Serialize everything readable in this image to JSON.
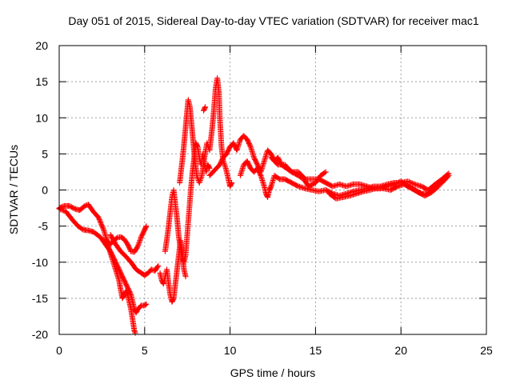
{
  "chart_data": {
    "type": "scatter",
    "title": "Day 051 of 2015, Sidereal Day-to-day VTEC variation (SDTVAR) for receiver mac1",
    "xlabel": "GPS time / hours",
    "ylabel": "SDTVAR / TECUs",
    "xlim": [
      0,
      25
    ],
    "ylim": [
      -20,
      20
    ],
    "x_ticks": [
      0,
      5,
      10,
      15,
      20,
      25
    ],
    "x_tick_labels": [
      "0",
      "5",
      "10",
      "15",
      "20",
      "25"
    ],
    "y_ticks": [
      -20,
      -15,
      -10,
      -5,
      0,
      5,
      10,
      15,
      20
    ],
    "y_tick_labels": [
      "-20",
      "-15",
      "-10",
      "-5",
      "0",
      "5",
      "10",
      "15",
      "20"
    ],
    "grid": true,
    "marker": "+",
    "color": "#ff0000",
    "series": [
      {
        "name": "mac1",
        "tracks": [
          [
            [
              0.0,
              -2.5
            ],
            [
              0.3,
              -2.2
            ],
            [
              0.6,
              -2.2
            ],
            [
              0.9,
              -2.6
            ],
            [
              1.2,
              -2.8
            ],
            [
              1.5,
              -2.2
            ],
            [
              1.7,
              -2.0
            ],
            [
              2.0,
              -3.0
            ],
            [
              2.3,
              -3.8
            ],
            [
              2.6,
              -5.5
            ],
            [
              2.8,
              -7.0
            ],
            [
              3.0,
              -7.5
            ],
            [
              3.2,
              -7.0
            ],
            [
              3.4,
              -6.6
            ],
            [
              3.6,
              -6.5
            ],
            [
              3.8,
              -6.8
            ],
            [
              4.0,
              -7.5
            ],
            [
              4.2,
              -8.5
            ],
            [
              4.4,
              -8.6
            ],
            [
              4.6,
              -7.8
            ],
            [
              4.8,
              -6.5
            ],
            [
              5.0,
              -5.5
            ],
            [
              5.1,
              -5.0
            ]
          ],
          [
            [
              0.0,
              -2.6
            ],
            [
              0.4,
              -3.0
            ],
            [
              0.8,
              -4.2
            ],
            [
              1.1,
              -5.0
            ],
            [
              1.4,
              -5.5
            ],
            [
              1.7,
              -5.6
            ],
            [
              2.0,
              -5.8
            ],
            [
              2.4,
              -6.5
            ],
            [
              2.7,
              -7.5
            ],
            [
              3.0,
              -8.5
            ],
            [
              3.2,
              -9.5
            ],
            [
              3.4,
              -10.5
            ],
            [
              3.6,
              -11.5
            ],
            [
              3.8,
              -12.5
            ],
            [
              4.0,
              -13.5
            ],
            [
              4.2,
              -14.5
            ],
            [
              4.3,
              -15.5
            ],
            [
              4.4,
              -16.5
            ],
            [
              4.5,
              -17.0
            ],
            [
              4.6,
              -16.5
            ],
            [
              4.8,
              -16.0
            ],
            [
              5.0,
              -16.0
            ],
            [
              5.1,
              -15.8
            ]
          ],
          [
            [
              2.7,
              -6.8
            ],
            [
              2.9,
              -8.0
            ],
            [
              3.1,
              -9.5
            ],
            [
              3.3,
              -11.0
            ],
            [
              3.5,
              -12.5
            ],
            [
              3.6,
              -13.8
            ],
            [
              3.7,
              -15.0
            ],
            [
              3.8,
              -14.5
            ],
            [
              3.9,
              -14.0
            ],
            [
              4.0,
              -14.5
            ],
            [
              4.1,
              -15.5
            ],
            [
              4.2,
              -16.5
            ],
            [
              4.3,
              -18.0
            ],
            [
              4.4,
              -19.5
            ],
            [
              4.45,
              -19.8
            ]
          ],
          [
            [
              3.0,
              -6.2
            ],
            [
              3.3,
              -7.5
            ],
            [
              3.6,
              -8.5
            ],
            [
              3.9,
              -9.2
            ],
            [
              4.2,
              -10.0
            ],
            [
              4.5,
              -11.0
            ],
            [
              4.8,
              -11.5
            ],
            [
              5.0,
              -11.8
            ],
            [
              5.2,
              -11.5
            ],
            [
              5.4,
              -11.0
            ],
            [
              5.6,
              -11.2
            ],
            [
              5.8,
              -10.5
            ]
          ],
          [
            [
              5.9,
              -11.5
            ],
            [
              6.0,
              -12.5
            ],
            [
              6.1,
              -13.0
            ],
            [
              6.2,
              -12.0
            ],
            [
              6.3,
              -11.0
            ],
            [
              6.4,
              -13.0
            ],
            [
              6.5,
              -14.5
            ],
            [
              6.6,
              -15.5
            ],
            [
              6.7,
              -15.0
            ],
            [
              6.8,
              -13.0
            ],
            [
              6.9,
              -11.0
            ],
            [
              7.0,
              -9.0
            ],
            [
              7.1,
              -7.0
            ],
            [
              7.2,
              -8.5
            ],
            [
              7.3,
              -11.0
            ],
            [
              7.4,
              -12.0
            ]
          ],
          [
            [
              6.2,
              -8.5
            ],
            [
              6.35,
              -6.0
            ],
            [
              6.5,
              -3.0
            ],
            [
              6.6,
              -1.0
            ],
            [
              6.7,
              0.0
            ],
            [
              6.8,
              -2.0
            ],
            [
              6.9,
              -4.0
            ],
            [
              7.0,
              -6.5
            ],
            [
              7.1,
              -8.0
            ],
            [
              7.2,
              -9.5
            ],
            [
              7.3,
              -10.0
            ],
            [
              7.4,
              -9.0
            ],
            [
              7.5,
              -6.0
            ],
            [
              7.6,
              -3.0
            ],
            [
              7.7,
              0.0
            ],
            [
              7.8,
              2.5
            ],
            [
              7.9,
              4.5
            ],
            [
              8.0,
              6.5
            ],
            [
              8.1,
              6.0
            ],
            [
              8.2,
              4.5
            ],
            [
              8.3,
              3.5
            ],
            [
              8.4,
              5.0
            ],
            [
              8.5,
              3.5
            ],
            [
              8.6,
              2.5
            ],
            [
              8.7,
              3.5
            ],
            [
              8.8,
              3.0
            ]
          ],
          [
            [
              7.05,
              1.0
            ],
            [
              7.15,
              3.0
            ],
            [
              7.25,
              5.0
            ],
            [
              7.35,
              7.5
            ],
            [
              7.45,
              10.0
            ],
            [
              7.55,
              12.5
            ],
            [
              7.65,
              11.5
            ],
            [
              7.75,
              9.0
            ],
            [
              7.85,
              6.5
            ],
            [
              7.95,
              4.0
            ],
            [
              8.05,
              2.0
            ],
            [
              8.2,
              1.0
            ],
            [
              8.35,
              2.0
            ],
            [
              8.5,
              4.5
            ],
            [
              8.65,
              6.5
            ],
            [
              8.8,
              5.5
            ],
            [
              8.95,
              8.5
            ],
            [
              9.05,
              11.0
            ],
            [
              9.15,
              14.0
            ],
            [
              9.25,
              15.5
            ],
            [
              9.35,
              13.5
            ],
            [
              9.4,
              10.0
            ],
            [
              9.5,
              6.0
            ],
            [
              9.6,
              4.0
            ],
            [
              9.75,
              3.0
            ],
            [
              9.9,
              1.5
            ],
            [
              10.0,
              0.5
            ],
            [
              10.1,
              1.0
            ]
          ],
          [
            [
              8.45,
              11.0
            ],
            [
              8.55,
              11.5
            ]
          ],
          [
            [
              8.8,
              2.0
            ],
            [
              9.0,
              2.5
            ],
            [
              9.2,
              3.0
            ],
            [
              9.4,
              3.5
            ],
            [
              9.6,
              4.5
            ],
            [
              9.8,
              5.0
            ],
            [
              10.0,
              6.0
            ],
            [
              10.2,
              6.5
            ],
            [
              10.4,
              5.5
            ],
            [
              10.6,
              7.0
            ],
            [
              10.8,
              7.5
            ],
            [
              11.0,
              7.0
            ],
            [
              11.2,
              6.0
            ],
            [
              11.4,
              4.5
            ],
            [
              11.6,
              3.5
            ],
            [
              11.8,
              2.5
            ],
            [
              12.0,
              4.0
            ],
            [
              12.2,
              5.5
            ],
            [
              12.4,
              5.0
            ],
            [
              12.6,
              4.0
            ],
            [
              12.8,
              4.5
            ],
            [
              13.0,
              3.5
            ],
            [
              13.3,
              3.0
            ],
            [
              13.6,
              2.5
            ],
            [
              14.0,
              2.0
            ],
            [
              14.3,
              1.5
            ],
            [
              14.6,
              0.5
            ],
            [
              15.0,
              1.0
            ],
            [
              15.3,
              2.0
            ],
            [
              15.6,
              2.5
            ]
          ],
          [
            [
              10.6,
              2.0
            ],
            [
              10.8,
              3.5
            ],
            [
              11.0,
              4.0
            ],
            [
              11.2,
              3.0
            ],
            [
              11.4,
              2.5
            ],
            [
              11.6,
              3.0
            ],
            [
              11.8,
              2.0
            ],
            [
              12.0,
              0.5
            ],
            [
              12.1,
              -0.5
            ],
            [
              12.2,
              -1.0
            ],
            [
              12.3,
              0.0
            ],
            [
              12.4,
              0.5
            ],
            [
              12.6,
              2.0
            ],
            [
              12.9,
              1.5
            ],
            [
              13.2,
              1.5
            ],
            [
              13.6,
              1.0
            ],
            [
              14.0,
              0.5
            ],
            [
              14.4,
              0.2
            ],
            [
              14.8,
              0.0
            ],
            [
              15.2,
              -0.2
            ],
            [
              15.6,
              0.0
            ],
            [
              16.0,
              -0.5
            ],
            [
              16.4,
              -0.8
            ],
            [
              16.8,
              -0.5
            ],
            [
              17.2,
              -0.2
            ],
            [
              17.6,
              0.0
            ],
            [
              18.0,
              0.2
            ],
            [
              18.4,
              0.5
            ],
            [
              18.8,
              0.5
            ],
            [
              19.2,
              0.8
            ],
            [
              19.6,
              1.0
            ],
            [
              20.0,
              1.0
            ],
            [
              20.4,
              1.2
            ],
            [
              20.8,
              0.8
            ],
            [
              21.2,
              0.5
            ],
            [
              21.6,
              0.0
            ],
            [
              22.0,
              0.8
            ],
            [
              22.4,
              1.5
            ],
            [
              22.8,
              2.3
            ]
          ],
          [
            [
              12.4,
              4.5
            ],
            [
              12.8,
              3.5
            ],
            [
              13.2,
              3.5
            ],
            [
              13.6,
              2.5
            ],
            [
              14.0,
              2.5
            ],
            [
              14.4,
              1.5
            ],
            [
              14.8,
              1.5
            ],
            [
              15.2,
              1.5
            ],
            [
              15.6,
              1.0
            ],
            [
              16.0,
              0.5
            ],
            [
              16.4,
              0.8
            ],
            [
              16.8,
              0.5
            ],
            [
              17.2,
              0.8
            ],
            [
              17.6,
              0.8
            ],
            [
              18.0,
              0.5
            ],
            [
              18.4,
              0.2
            ],
            [
              18.8,
              0.2
            ],
            [
              19.2,
              0.5
            ],
            [
              19.6,
              0.8
            ],
            [
              20.0,
              1.2
            ],
            [
              20.4,
              0.5
            ],
            [
              20.8,
              0.0
            ],
            [
              21.2,
              -0.5
            ],
            [
              21.6,
              -0.5
            ],
            [
              22.0,
              0.5
            ],
            [
              22.4,
              1.0
            ],
            [
              22.8,
              2.0
            ]
          ],
          [
            [
              15.8,
              -0.5
            ],
            [
              16.2,
              -1.2
            ],
            [
              16.6,
              -1.0
            ],
            [
              17.0,
              -0.8
            ],
            [
              17.4,
              -0.5
            ],
            [
              17.8,
              -0.2
            ],
            [
              18.2,
              0.0
            ],
            [
              18.6,
              0.3
            ],
            [
              19.0,
              0.2
            ],
            [
              19.4,
              0.0
            ],
            [
              19.8,
              0.5
            ],
            [
              20.2,
              0.8
            ],
            [
              20.6,
              0.3
            ],
            [
              21.0,
              -0.3
            ],
            [
              21.4,
              -0.8
            ],
            [
              21.8,
              -0.3
            ],
            [
              22.2,
              0.5
            ]
          ]
        ]
      }
    ]
  }
}
